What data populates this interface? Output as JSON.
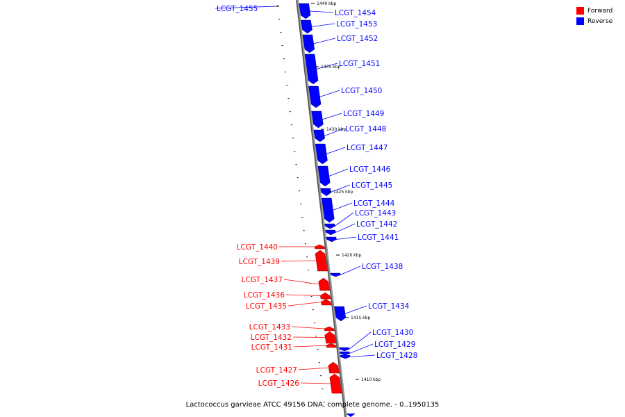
{
  "colors": {
    "forward": "#ff0000",
    "reverse": "#0000ff",
    "backbone": "#888888"
  },
  "legend": [
    {
      "label": "Forward",
      "color": "#ff0000"
    },
    {
      "label": "Reverse",
      "color": "#0000ff"
    }
  ],
  "caption": "Lactococcus garvieae ATCC 49156 DNA, complete genome. - 0..1950135",
  "genes": [
    {
      "name": "LCGT_1455",
      "strand": "reverse"
    },
    {
      "name": "LCGT_1454",
      "strand": "reverse"
    },
    {
      "name": "LCGT_1453",
      "strand": "reverse"
    },
    {
      "name": "LCGT_1452",
      "strand": "reverse"
    },
    {
      "name": "LCGT_1451",
      "strand": "reverse"
    },
    {
      "name": "LCGT_1450",
      "strand": "reverse"
    },
    {
      "name": "LCGT_1449",
      "strand": "reverse"
    },
    {
      "name": "LCGT_1448",
      "strand": "reverse"
    },
    {
      "name": "LCGT_1447",
      "strand": "reverse"
    },
    {
      "name": "LCGT_1446",
      "strand": "reverse"
    },
    {
      "name": "LCGT_1445",
      "strand": "reverse"
    },
    {
      "name": "LCGT_1444",
      "strand": "reverse"
    },
    {
      "name": "LCGT_1443",
      "strand": "reverse"
    },
    {
      "name": "LCGT_1442",
      "strand": "reverse"
    },
    {
      "name": "LCGT_1441",
      "strand": "reverse"
    },
    {
      "name": "LCGT_1440",
      "strand": "forward"
    },
    {
      "name": "LCGT_1439",
      "strand": "forward"
    },
    {
      "name": "LCGT_1438",
      "strand": "reverse"
    },
    {
      "name": "LCGT_1437",
      "strand": "forward"
    },
    {
      "name": "LCGT_1436",
      "strand": "forward"
    },
    {
      "name": "LCGT_1435",
      "strand": "forward"
    },
    {
      "name": "LCGT_1434",
      "strand": "reverse"
    },
    {
      "name": "LCGT_1433",
      "strand": "forward"
    },
    {
      "name": "LCGT_1432",
      "strand": "forward"
    },
    {
      "name": "LCGT_1431",
      "strand": "forward"
    },
    {
      "name": "LCGT_1430",
      "strand": "reverse"
    },
    {
      "name": "LCGT_1429",
      "strand": "reverse"
    },
    {
      "name": "LCGT_1428",
      "strand": "reverse"
    },
    {
      "name": "LCGT_1427",
      "strand": "forward"
    },
    {
      "name": "LCGT_1426",
      "strand": "forward"
    }
  ],
  "ticks": [
    "1440 kbp",
    "1435 kbp",
    "1430 kbp",
    "1425 kbp",
    "1420 kbp",
    "1415 kbp",
    "1410 kbp"
  ]
}
